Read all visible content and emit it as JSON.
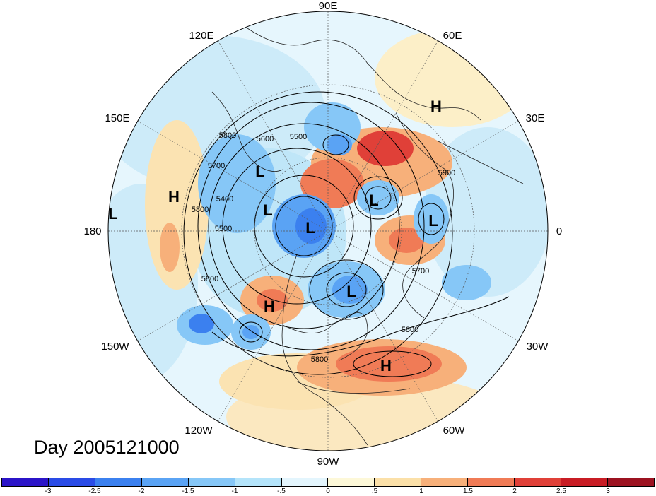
{
  "map": {
    "projection": "north-polar-stereographic",
    "longitude_labels": [
      "90E",
      "60E",
      "30E",
      "0",
      "30W",
      "60W",
      "90W",
      "120W",
      "150W",
      "180",
      "150E",
      "120E"
    ],
    "pressure_labels": [
      {
        "id": "H-siberia",
        "text": "H"
      },
      {
        "id": "L-kara",
        "text": "L"
      },
      {
        "id": "L-east-siberia",
        "text": "L"
      },
      {
        "id": "L-chukotka",
        "text": "L"
      },
      {
        "id": "L-arctic",
        "text": "L"
      },
      {
        "id": "H-pacific",
        "text": "H"
      },
      {
        "id": "L-dateline",
        "text": "L"
      },
      {
        "id": "L-europe",
        "text": "L"
      },
      {
        "id": "L-hudson",
        "text": "L"
      },
      {
        "id": "H-alaska",
        "text": "H"
      },
      {
        "id": "H-atlantic",
        "text": "H"
      }
    ],
    "contour_labels": [
      "5500",
      "5600",
      "5800",
      "5700",
      "5400",
      "5500",
      "5800",
      "5800",
      "5700",
      "5900",
      "5800",
      "5800"
    ]
  },
  "title": "Day 2005121000",
  "colorbar": {
    "ticks": [
      "-3",
      "-2.5",
      "-2",
      "-1.5",
      "-1",
      "-.5",
      "0",
      ".5",
      "1",
      "1.5",
      "2",
      "2.5",
      "3"
    ],
    "colors": [
      "#2b14c8",
      "#2a4be6",
      "#3b80ef",
      "#5aa3f4",
      "#86c7f7",
      "#b4e4fa",
      "#e3f5fd",
      "#fdf8d8",
      "#fbe0a8",
      "#f7b07a",
      "#f07b56",
      "#e04038",
      "#c81c24",
      "#9c1220"
    ]
  }
}
